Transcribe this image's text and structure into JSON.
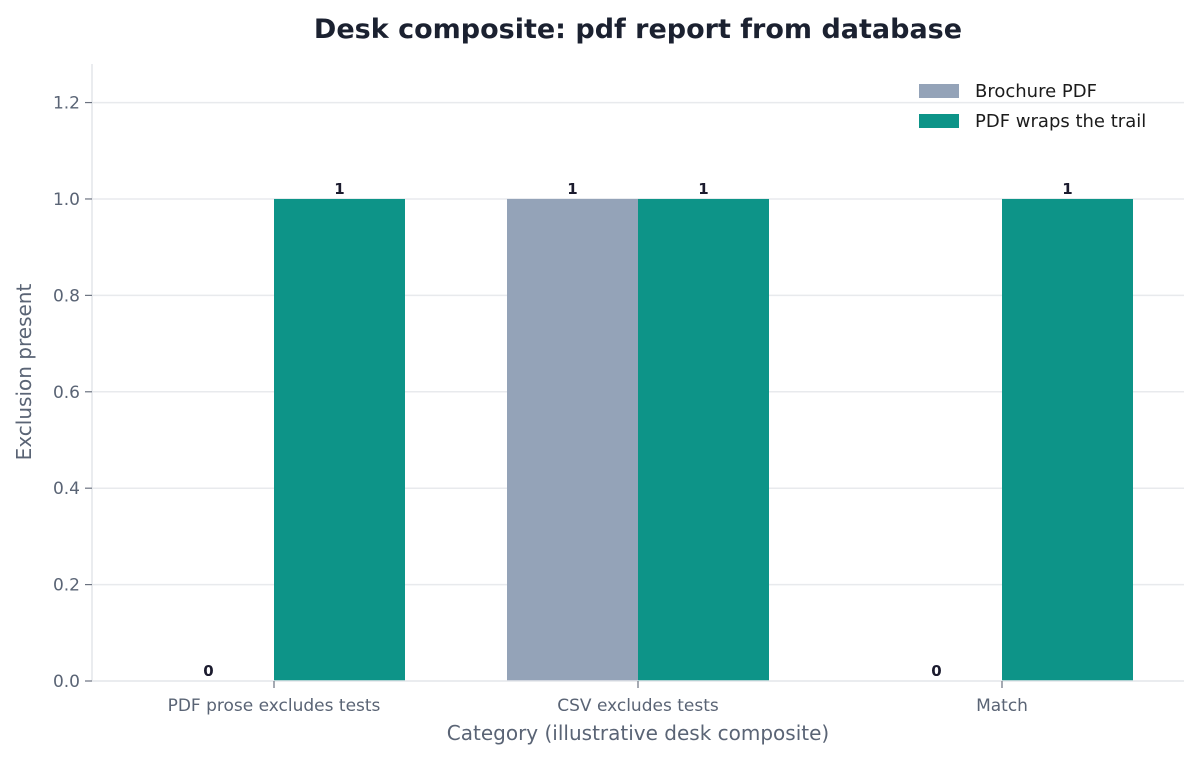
{
  "chart_data": {
    "type": "bar",
    "title": "Desk composite: pdf report from database",
    "xlabel": "Category (illustrative desk composite)",
    "ylabel": "Exclusion present",
    "categories": [
      "PDF prose excludes tests",
      "CSV excludes tests",
      "Match"
    ],
    "series": [
      {
        "name": "Brochure PDF",
        "values": [
          0,
          1,
          0
        ],
        "color": "#94a3b8"
      },
      {
        "name": "PDF wraps the trail",
        "values": [
          1,
          1,
          1
        ],
        "color": "#0d9488"
      }
    ],
    "ylim": [
      0,
      1.28
    ],
    "yticks": [
      0.0,
      0.2,
      0.4,
      0.6,
      0.8,
      1.0,
      1.2
    ],
    "ytick_labels": [
      "0.0",
      "0.2",
      "0.4",
      "0.6",
      "0.8",
      "1.0",
      "1.2"
    ],
    "grid": "horizontal",
    "legend_position": "top-right"
  }
}
